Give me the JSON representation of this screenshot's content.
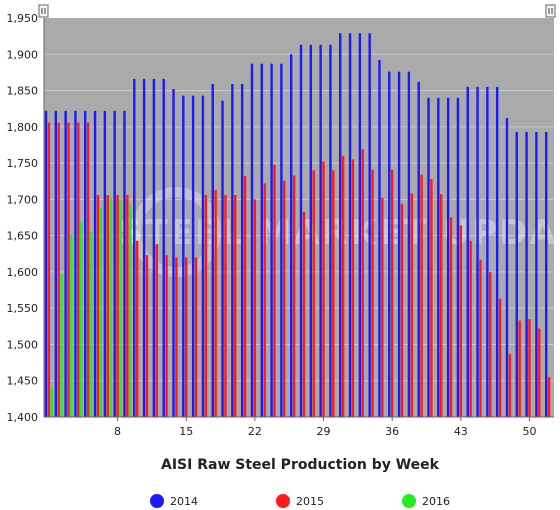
{
  "chart_data": {
    "type": "bar",
    "title": "AISI Raw Steel Production by Week",
    "xlabel": "",
    "ylabel": "",
    "ylim": [
      1400,
      1950
    ],
    "y_ticks": [
      "1,400",
      "1,450",
      "1,500",
      "1,550",
      "1,600",
      "1,650",
      "1,700",
      "1,750",
      "1,800",
      "1,850",
      "1,900",
      "1,950"
    ],
    "x_ticks": [
      {
        "week": 8,
        "label": "8"
      },
      {
        "week": 15,
        "label": "15"
      },
      {
        "week": 22,
        "label": "22"
      },
      {
        "week": 29,
        "label": "29"
      },
      {
        "week": 36,
        "label": "36"
      },
      {
        "week": 43,
        "label": "43"
      },
      {
        "week": 50,
        "label": "50"
      }
    ],
    "x_range": [
      1,
      52
    ],
    "grid": true,
    "legend_position": "bottom",
    "series": [
      {
        "name": "2014",
        "color": "#1a1aff",
        "values": [
          1822,
          1822,
          1822,
          1822,
          1822,
          1822,
          1822,
          1822,
          1822,
          1866,
          1866,
          1866,
          1866,
          1852,
          1843,
          1843,
          1843,
          1859,
          1836,
          1859,
          1859,
          1887,
          1887,
          1887,
          1887,
          1900,
          1913,
          1913,
          1913,
          1913,
          1929,
          1929,
          1929,
          1929,
          1892,
          1876,
          1876,
          1876,
          1862,
          1840,
          1840,
          1840,
          1840,
          1855,
          1855,
          1855,
          1855,
          1812,
          1793,
          1793,
          1793,
          1793
        ]
      },
      {
        "name": "2015",
        "color": "#ff1a1a",
        "values": [
          1806,
          1806,
          1806,
          1806,
          1806,
          1706,
          1706,
          1706,
          1706,
          1643,
          1623,
          1638,
          1623,
          1620,
          1620,
          1620,
          1706,
          1713,
          1706,
          1706,
          1732,
          1700,
          1722,
          1748,
          1726,
          1733,
          1683,
          1740,
          1752,
          1740,
          1760,
          1755,
          1769,
          1741,
          1702,
          1741,
          1694,
          1708,
          1734,
          1728,
          1707,
          1675,
          1664,
          1643,
          1617,
          1600,
          1563,
          1487,
          1533,
          1535,
          1522,
          1455
        ]
      },
      {
        "name": "2016",
        "color": "#22ee22",
        "values": [
          1440,
          1597,
          1651,
          1669,
          1656,
          1689,
          1703,
          1700,
          1693
        ]
      }
    ]
  },
  "watermark": "STEEL MARKET UPDATE"
}
